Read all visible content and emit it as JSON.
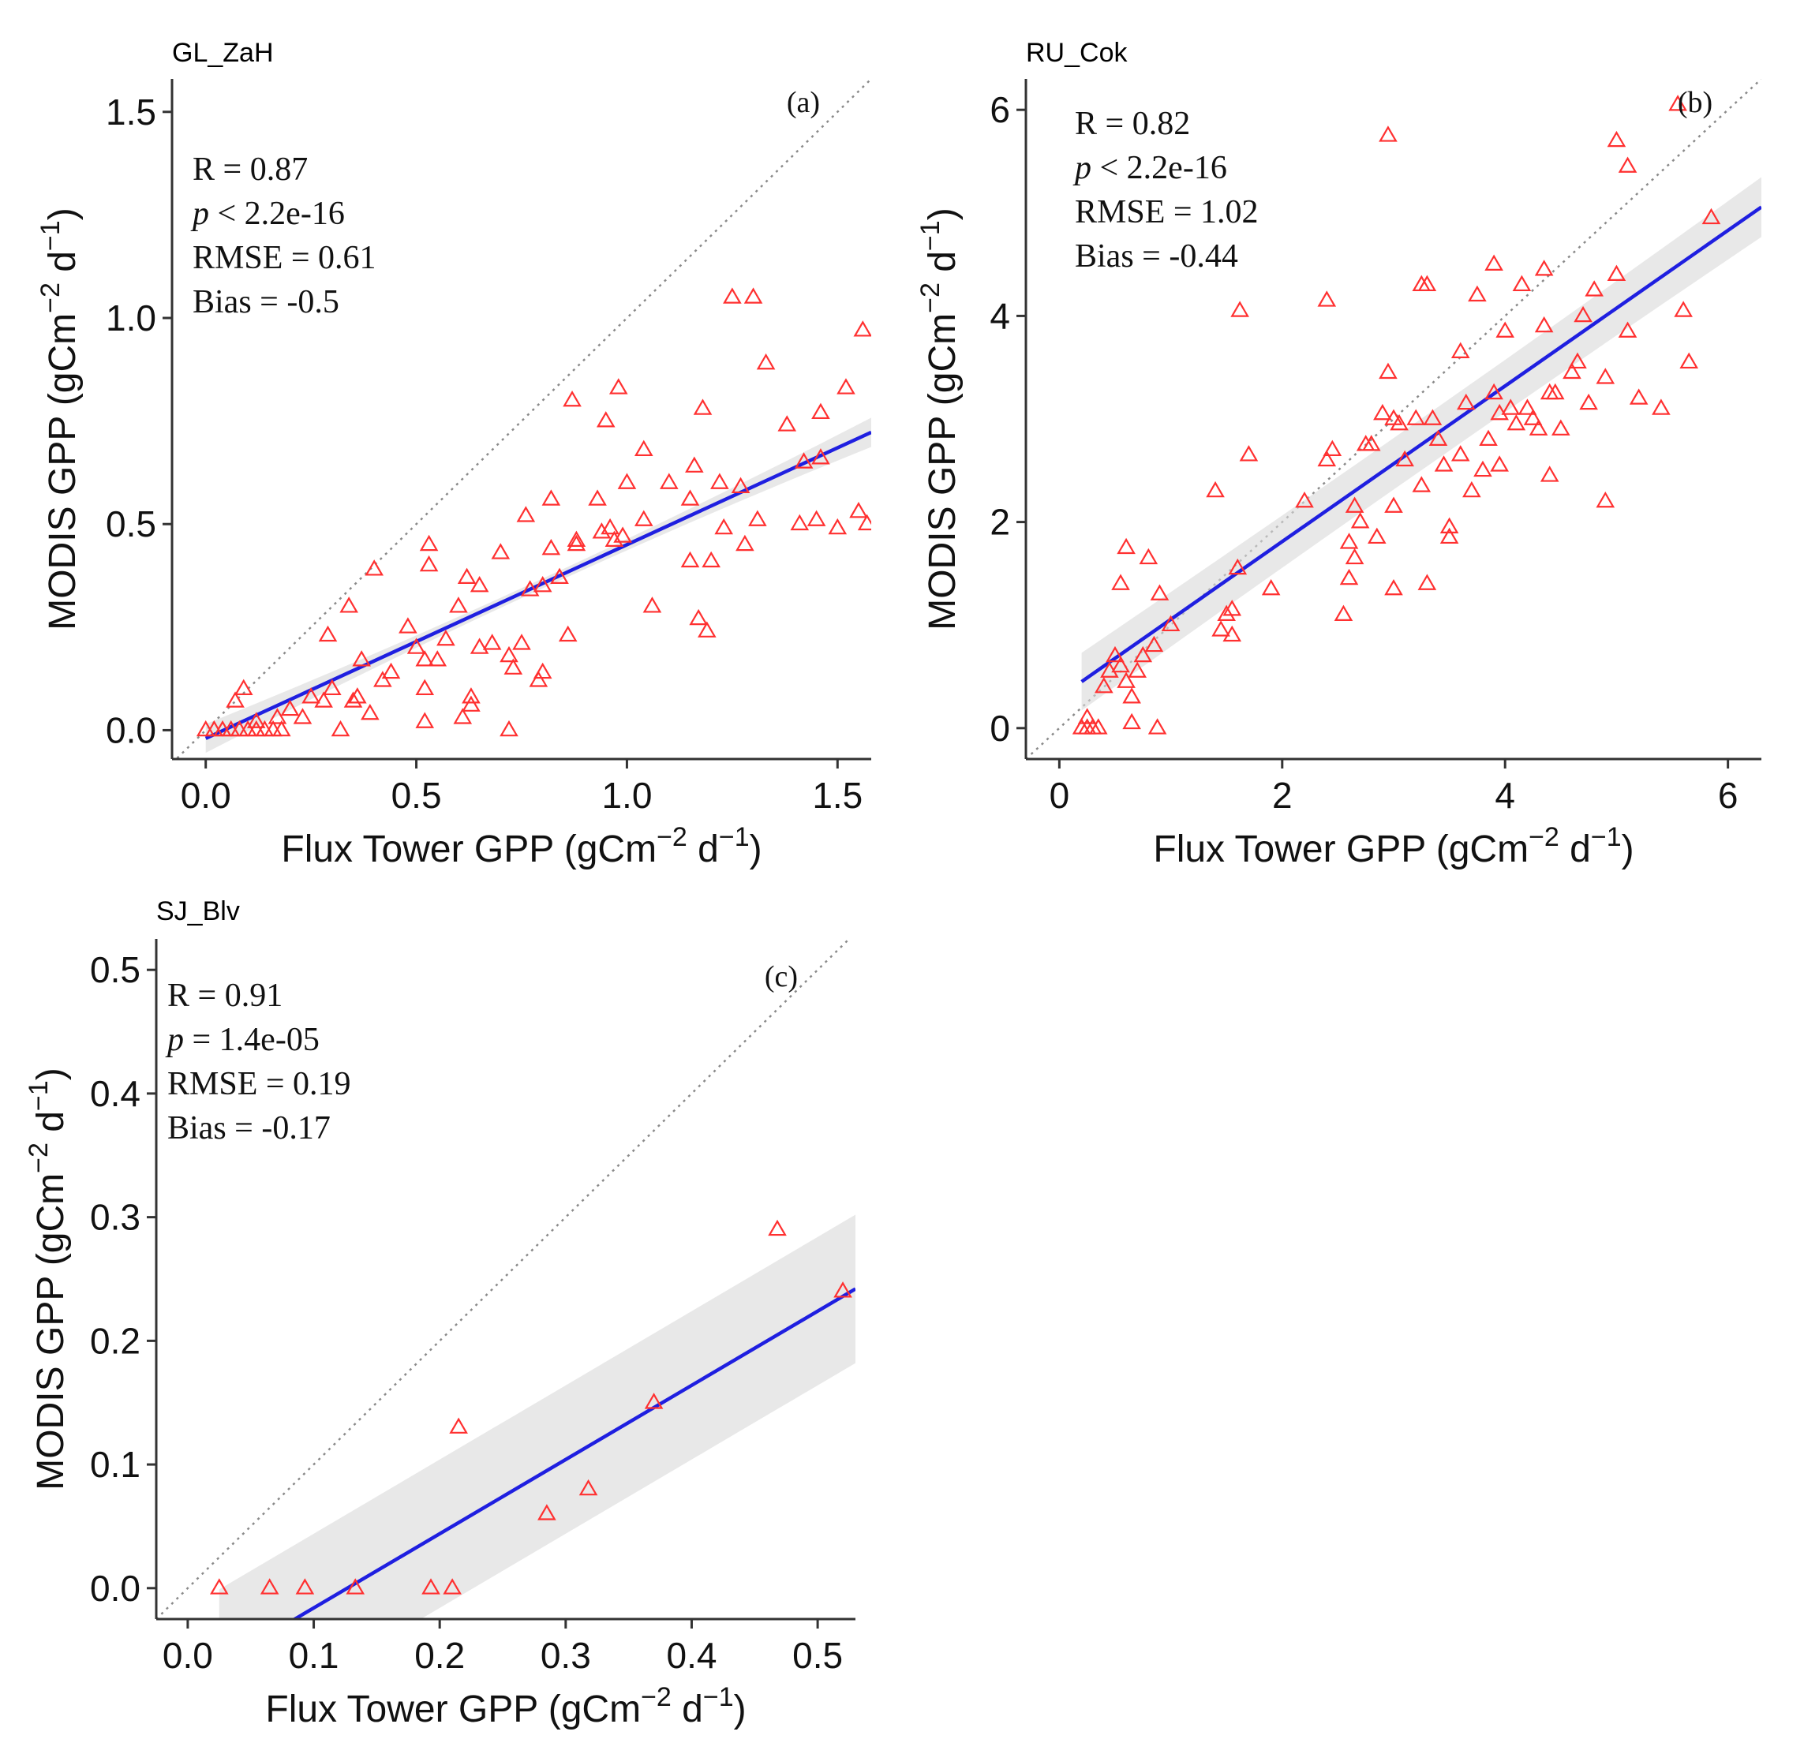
{
  "figure": {
    "xlabel": "Flux Tower GPP (gCm",
    "ylabel": "MODIS GPP (gCm",
    "unit_exp1": "−2",
    "unit_mid": " d",
    "unit_exp2": "−1",
    "unit_close": ")"
  },
  "colors": {
    "points": "#ff3030",
    "fit": "#1f1fe0",
    "band": "#d9d9d9",
    "reference": "#8a8a8a"
  },
  "chart_data": [
    {
      "type": "scatter",
      "title": "GL_ZaH",
      "panel_label": "(a)",
      "xlim": [
        -0.08,
        1.58
      ],
      "ylim": [
        -0.07,
        1.58
      ],
      "xticks": [
        0.0,
        0.5,
        1.0,
        1.5
      ],
      "yticks": [
        0.0,
        0.5,
        1.0,
        1.5
      ],
      "xtick_labels": [
        "0.0",
        "0.5",
        "1.0",
        "1.5"
      ],
      "ytick_labels": [
        "0.0",
        "0.5",
        "1.0",
        "1.5"
      ],
      "stats": {
        "r": "R = 0.87",
        "p_sym": "p",
        "p": " < 2.2e-16",
        "rmse": "RMSE = 0.61",
        "bias": "Bias = -0.5"
      },
      "fit": {
        "slope": 0.47,
        "intercept": -0.02
      },
      "band": {
        "half_low": 0.012,
        "half_high": 0.035
      },
      "points": [
        [
          0.0,
          0.0
        ],
        [
          0.02,
          0.0
        ],
        [
          0.04,
          0.0
        ],
        [
          0.06,
          0.0
        ],
        [
          0.08,
          0.0
        ],
        [
          0.1,
          0.0
        ],
        [
          0.12,
          0.0
        ],
        [
          0.14,
          0.0
        ],
        [
          0.16,
          0.0
        ],
        [
          0.18,
          0.0
        ],
        [
          0.07,
          0.07
        ],
        [
          0.09,
          0.1
        ],
        [
          0.12,
          0.02
        ],
        [
          0.17,
          0.03
        ],
        [
          0.2,
          0.05
        ],
        [
          0.23,
          0.03
        ],
        [
          0.25,
          0.08
        ],
        [
          0.28,
          0.07
        ],
        [
          0.3,
          0.1
        ],
        [
          0.29,
          0.23
        ],
        [
          0.32,
          0.0
        ],
        [
          0.34,
          0.3
        ],
        [
          0.35,
          0.07
        ],
        [
          0.36,
          0.08
        ],
        [
          0.37,
          0.17
        ],
        [
          0.39,
          0.04
        ],
        [
          0.4,
          0.39
        ],
        [
          0.42,
          0.12
        ],
        [
          0.44,
          0.14
        ],
        [
          0.48,
          0.25
        ],
        [
          0.5,
          0.2
        ],
        [
          0.52,
          0.02
        ],
        [
          0.52,
          0.1
        ],
        [
          0.52,
          0.17
        ],
        [
          0.53,
          0.45
        ],
        [
          0.53,
          0.4
        ],
        [
          0.55,
          0.17
        ],
        [
          0.57,
          0.22
        ],
        [
          0.6,
          0.3
        ],
        [
          0.62,
          0.37
        ],
        [
          0.61,
          0.03
        ],
        [
          0.63,
          0.06
        ],
        [
          0.63,
          0.08
        ],
        [
          0.65,
          0.35
        ],
        [
          0.65,
          0.2
        ],
        [
          0.68,
          0.21
        ],
        [
          0.7,
          0.43
        ],
        [
          0.72,
          0.18
        ],
        [
          0.73,
          0.15
        ],
        [
          0.72,
          0.0
        ],
        [
          0.75,
          0.21
        ],
        [
          0.77,
          0.34
        ],
        [
          0.76,
          0.52
        ],
        [
          0.79,
          0.12
        ],
        [
          0.8,
          0.14
        ],
        [
          0.8,
          0.35
        ],
        [
          0.82,
          0.44
        ],
        [
          0.82,
          0.56
        ],
        [
          0.84,
          0.37
        ],
        [
          0.86,
          0.23
        ],
        [
          0.87,
          0.8
        ],
        [
          0.88,
          0.45
        ],
        [
          0.88,
          0.46
        ],
        [
          0.93,
          0.56
        ],
        [
          0.94,
          0.48
        ],
        [
          0.95,
          0.75
        ],
        [
          0.96,
          0.49
        ],
        [
          0.97,
          0.46
        ],
        [
          0.98,
          0.83
        ],
        [
          0.99,
          0.47
        ],
        [
          1.0,
          0.6
        ],
        [
          1.04,
          0.51
        ],
        [
          1.04,
          0.68
        ],
        [
          1.06,
          0.3
        ],
        [
          1.1,
          0.6
        ],
        [
          1.15,
          0.56
        ],
        [
          1.15,
          0.41
        ],
        [
          1.16,
          0.64
        ],
        [
          1.17,
          0.27
        ],
        [
          1.18,
          0.78
        ],
        [
          1.19,
          0.24
        ],
        [
          1.2,
          0.41
        ],
        [
          1.22,
          0.6
        ],
        [
          1.23,
          0.49
        ],
        [
          1.25,
          1.05
        ],
        [
          1.27,
          0.59
        ],
        [
          1.28,
          0.45
        ],
        [
          1.3,
          1.05
        ],
        [
          1.31,
          0.51
        ],
        [
          1.33,
          0.89
        ],
        [
          1.38,
          0.74
        ],
        [
          1.41,
          0.5
        ],
        [
          1.42,
          0.65
        ],
        [
          1.45,
          0.51
        ],
        [
          1.46,
          0.77
        ],
        [
          1.46,
          0.66
        ],
        [
          1.5,
          0.49
        ],
        [
          1.52,
          0.83
        ],
        [
          1.55,
          0.53
        ],
        [
          1.56,
          0.97
        ],
        [
          1.57,
          0.5
        ]
      ]
    },
    {
      "type": "scatter",
      "title": "RU_Cok",
      "panel_label": "(b)",
      "xlim": [
        -0.3,
        6.3
      ],
      "ylim": [
        -0.3,
        6.3
      ],
      "xticks": [
        0,
        2,
        4,
        6
      ],
      "yticks": [
        0,
        2,
        4,
        6
      ],
      "xtick_labels": [
        "0",
        "2",
        "4",
        "6"
      ],
      "ytick_labels": [
        "0",
        "2",
        "4",
        "6"
      ],
      "stats": {
        "r": "R = 0.82",
        "p_sym": "p",
        "p": " < 2.2e-16",
        "rmse": "RMSE = 1.02",
        "bias": "Bias = -0.44"
      },
      "fit": {
        "slope": 0.755,
        "intercept": 0.3
      },
      "band": {
        "half_low": 0.25,
        "half_high": 0.28
      },
      "points": [
        [
          0.2,
          0.0
        ],
        [
          0.25,
          0.0
        ],
        [
          0.3,
          0.0
        ],
        [
          0.35,
          0.0
        ],
        [
          0.25,
          0.1
        ],
        [
          0.4,
          0.4
        ],
        [
          0.45,
          0.55
        ],
        [
          0.5,
          0.7
        ],
        [
          0.55,
          0.6
        ],
        [
          0.6,
          0.45
        ],
        [
          0.55,
          1.4
        ],
        [
          0.6,
          1.75
        ],
        [
          0.65,
          0.3
        ],
        [
          0.65,
          0.05
        ],
        [
          0.7,
          0.55
        ],
        [
          0.75,
          0.7
        ],
        [
          0.8,
          1.65
        ],
        [
          0.85,
          0.8
        ],
        [
          0.9,
          1.3
        ],
        [
          0.88,
          0.0
        ],
        [
          1.0,
          1.0
        ],
        [
          1.4,
          2.3
        ],
        [
          1.45,
          0.95
        ],
        [
          1.5,
          1.1
        ],
        [
          1.55,
          0.9
        ],
        [
          1.55,
          1.15
        ],
        [
          1.6,
          1.55
        ],
        [
          1.62,
          4.05
        ],
        [
          1.7,
          2.65
        ],
        [
          1.9,
          1.35
        ],
        [
          2.2,
          2.2
        ],
        [
          2.4,
          4.15
        ],
        [
          2.4,
          2.6
        ],
        [
          2.45,
          2.7
        ],
        [
          2.55,
          1.1
        ],
        [
          2.6,
          1.45
        ],
        [
          2.6,
          1.8
        ],
        [
          2.65,
          1.65
        ],
        [
          2.65,
          2.15
        ],
        [
          2.7,
          2.0
        ],
        [
          2.75,
          2.75
        ],
        [
          2.8,
          2.75
        ],
        [
          2.85,
          1.85
        ],
        [
          2.9,
          3.05
        ],
        [
          2.95,
          3.45
        ],
        [
          2.95,
          5.75
        ],
        [
          3.0,
          3.0
        ],
        [
          3.0,
          1.35
        ],
        [
          3.0,
          2.15
        ],
        [
          3.05,
          2.95
        ],
        [
          3.1,
          2.6
        ],
        [
          3.2,
          3.0
        ],
        [
          3.25,
          4.3
        ],
        [
          3.3,
          4.3
        ],
        [
          3.25,
          2.35
        ],
        [
          3.3,
          1.4
        ],
        [
          3.35,
          3.0
        ],
        [
          3.4,
          2.8
        ],
        [
          3.45,
          2.55
        ],
        [
          3.5,
          1.85
        ],
        [
          3.5,
          1.95
        ],
        [
          3.6,
          2.65
        ],
        [
          3.6,
          3.65
        ],
        [
          3.65,
          3.15
        ],
        [
          3.7,
          2.3
        ],
        [
          3.75,
          4.2
        ],
        [
          3.8,
          2.5
        ],
        [
          3.85,
          2.8
        ],
        [
          3.9,
          3.25
        ],
        [
          3.9,
          4.5
        ],
        [
          3.95,
          2.55
        ],
        [
          3.95,
          3.05
        ],
        [
          4.0,
          3.85
        ],
        [
          4.05,
          3.1
        ],
        [
          4.1,
          2.95
        ],
        [
          4.15,
          4.3
        ],
        [
          4.2,
          3.1
        ],
        [
          4.25,
          3.0
        ],
        [
          4.3,
          2.9
        ],
        [
          4.35,
          3.9
        ],
        [
          4.35,
          4.45
        ],
        [
          4.4,
          3.25
        ],
        [
          4.4,
          2.45
        ],
        [
          4.45,
          3.25
        ],
        [
          4.5,
          2.9
        ],
        [
          4.6,
          3.45
        ],
        [
          4.65,
          3.55
        ],
        [
          4.7,
          4.0
        ],
        [
          4.75,
          3.15
        ],
        [
          4.8,
          4.25
        ],
        [
          4.9,
          3.4
        ],
        [
          4.9,
          2.2
        ],
        [
          5.0,
          4.4
        ],
        [
          5.0,
          5.7
        ],
        [
          5.1,
          5.45
        ],
        [
          5.1,
          3.85
        ],
        [
          5.2,
          3.2
        ],
        [
          5.4,
          3.1
        ],
        [
          5.55,
          6.05
        ],
        [
          5.6,
          4.05
        ],
        [
          5.65,
          3.55
        ],
        [
          5.85,
          4.95
        ]
      ]
    },
    {
      "type": "scatter",
      "title": "SJ_Blv",
      "panel_label": "(c)",
      "xlim": [
        -0.025,
        0.53
      ],
      "ylim": [
        -0.025,
        0.525
      ],
      "xticks": [
        0.0,
        0.1,
        0.2,
        0.3,
        0.4,
        0.5
      ],
      "yticks": [
        0.0,
        0.1,
        0.2,
        0.3,
        0.4,
        0.5
      ],
      "xtick_labels": [
        "0.0",
        "0.1",
        "0.2",
        "0.3",
        "0.4",
        "0.5"
      ],
      "ytick_labels": [
        "0.0",
        "0.1",
        "0.2",
        "0.3",
        "0.4",
        "0.5"
      ],
      "stats": {
        "r": "R = 0.91",
        "p_sym": "p",
        "p": " = 1.4e-05",
        "rmse": "RMSE = 0.19",
        "bias": "Bias = -0.17"
      },
      "fit": {
        "slope": 0.6,
        "intercept": -0.076
      },
      "band": {
        "half_low": 0.06,
        "half_high": 0.06
      },
      "points": [
        [
          0.025,
          0.0
        ],
        [
          0.065,
          0.0
        ],
        [
          0.093,
          0.0
        ],
        [
          0.133,
          0.0
        ],
        [
          0.193,
          0.0
        ],
        [
          0.21,
          0.0
        ],
        [
          0.215,
          0.13
        ],
        [
          0.285,
          0.06
        ],
        [
          0.318,
          0.08
        ],
        [
          0.37,
          0.15
        ],
        [
          0.468,
          0.29
        ],
        [
          0.52,
          0.24
        ]
      ]
    }
  ]
}
